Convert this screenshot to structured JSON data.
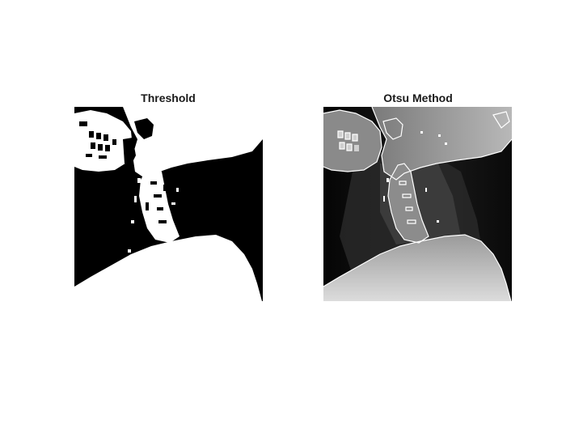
{
  "figure": {
    "panels": [
      {
        "title": "Threshold",
        "image": "binary-thresholded-neck-xray"
      },
      {
        "title": "Otsu Method",
        "image": "grayscale-neck-xray-with-otsu-contour"
      }
    ],
    "colors": {
      "background": "#ffffff",
      "foreground": "#ffffff",
      "dark": "#000000"
    }
  }
}
